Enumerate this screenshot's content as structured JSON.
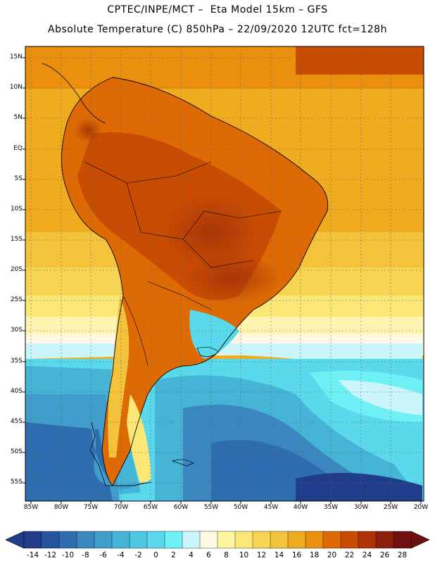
{
  "header": {
    "line1": "CPTEC/INPE/MCT –  Eta Model 15km – GFS",
    "line2": "Absolute Temperature (C) 850hPa – 22/09/2020 12UTC fct=128h"
  },
  "map": {
    "region": "South America",
    "lat_labels": [
      "15N",
      "10N",
      "5N",
      "EQ",
      "5S",
      "10S",
      "15S",
      "20S",
      "25S",
      "30S",
      "35S",
      "40S",
      "45S",
      "50S",
      "55S"
    ],
    "lon_labels": [
      "85W",
      "80W",
      "75W",
      "70W",
      "65W",
      "60W",
      "55W",
      "50W",
      "45W",
      "40W",
      "35W",
      "30W",
      "25W",
      "20W"
    ]
  },
  "legend": {
    "unit": "C",
    "labels": [
      "-14",
      "-12",
      "-10",
      "-8",
      "-6",
      "-4",
      "-2",
      "0",
      "2",
      "4",
      "6",
      "8",
      "10",
      "12",
      "14",
      "16",
      "18",
      "20",
      "22",
      "24",
      "26",
      "28"
    ],
    "colors": [
      "#1f3d8a",
      "#27549c",
      "#2e6eb0",
      "#3a87c0",
      "#3f9ecb",
      "#46b4d6",
      "#4ec8e2",
      "#5ad9ec",
      "#6ef0f5",
      "#c9f5fb",
      "#fff8e4",
      "#fdf6a0",
      "#fbe776",
      "#f7d553",
      "#f3c33c",
      "#efab20",
      "#ea900e",
      "#de6a05",
      "#c94c03",
      "#ad3205",
      "#8c1f0c",
      "#6e1010"
    ]
  }
}
